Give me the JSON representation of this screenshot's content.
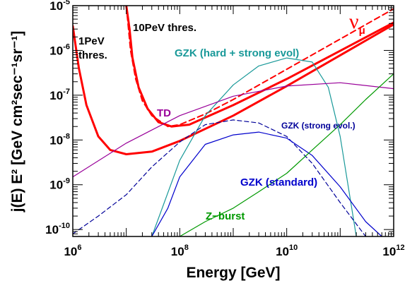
{
  "chart_data": {
    "type": "line",
    "xlabel": "Energy [GeV]",
    "ylabel": "j(E) E² [GeV cm²sec⁻¹sr⁻¹]",
    "x_scale": "log",
    "y_scale": "log",
    "xlim": [
      1000000,
      1000000000000
    ],
    "ylim": [
      7e-11,
      1e-05
    ],
    "x_ticks": [
      {
        "value": 1000000,
        "base": "10",
        "exp": "6"
      },
      {
        "value": 100000000,
        "base": "10",
        "exp": "8"
      },
      {
        "value": 10000000000,
        "base": "10",
        "exp": "10"
      },
      {
        "value": 1000000000000,
        "base": "10",
        "exp": "12"
      }
    ],
    "y_ticks": [
      {
        "value": 1e-10,
        "base": "10",
        "exp": "-10"
      },
      {
        "value": 1e-09,
        "base": "10",
        "exp": "-9"
      },
      {
        "value": 1e-08,
        "base": "10",
        "exp": "-8"
      },
      {
        "value": 1e-07,
        "base": "10",
        "exp": "-7"
      },
      {
        "value": 1e-06,
        "base": "10",
        "exp": "-6"
      },
      {
        "value": 1e-05,
        "base": "10",
        "exp": "-5"
      }
    ],
    "series": [
      {
        "label_key": "thres_1pev",
        "color": "#ff0000",
        "style": "solid",
        "width": 3,
        "x": [
          1000000,
          1300000,
          1800000,
          3000000,
          5000000,
          10000000,
          30000000,
          100000000,
          1000000000,
          10000000000,
          1000000000000
        ],
        "y": [
          3.5e-06,
          4e-07,
          6e-08,
          1.2e-08,
          6e-09,
          4.8e-09,
          5.5e-09,
          9.5e-09,
          3.5e-08,
          1.6e-07,
          3.8e-06
        ]
      },
      {
        "label_key": "thres_10pev",
        "color": "#ff0000",
        "style": "solid",
        "width": 3,
        "x": [
          10000000,
          11500000,
          13000000,
          17000000,
          25000000,
          40000000,
          70000000,
          150000000,
          1000000000,
          10000000000,
          1000000000000
        ],
        "y": [
          1e-05,
          3e-06,
          7e-07,
          1.5e-07,
          5e-08,
          2.5e-08,
          2e-08,
          2.2e-08,
          6e-08,
          2.3e-07,
          4.2e-06
        ]
      },
      {
        "label_key": "nu_mu",
        "color": "#ff0000",
        "style": "dashed",
        "width": 2,
        "x": [
          10000000,
          12000000,
          15000000,
          20000000,
          30000000,
          60000000,
          100000000,
          300000000,
          1000000000,
          10000000000,
          1000000000000
        ],
        "y": [
          1e-05,
          1e-06,
          2.3e-07,
          7.5e-08,
          3.5e-08,
          2e-08,
          2.2e-08,
          3.8e-08,
          8e-08,
          3.8e-07,
          8.5e-06
        ]
      },
      {
        "label_key": "gzk_hard",
        "color": "#199999",
        "style": "solid",
        "width": 1.2,
        "x": [
          30000000,
          100000000,
          300000000,
          1000000000,
          3000000000,
          10000000000,
          30000000000,
          60000000000,
          100000000000,
          200000000000
        ],
        "y": [
          7e-11,
          3.5e-09,
          3.5e-08,
          1.7e-07,
          4.5e-07,
          6.8e-07,
          5.5e-07,
          1.5e-07,
          1.2e-08,
          7e-11
        ]
      },
      {
        "label_key": "td",
        "color": "#990099",
        "style": "solid",
        "width": 1.2,
        "x": [
          1000000,
          10000000,
          100000000,
          1000000000,
          10000000000,
          100000000000,
          1000000000000
        ],
        "y": [
          1.5e-09,
          8.5e-09,
          3.5e-08,
          9.5e-08,
          1.6e-07,
          1.9e-07,
          1.4e-07
        ]
      },
      {
        "label_key": "gzk_strong",
        "color": "#000099",
        "style": "dashed",
        "width": 1.2,
        "x": [
          1000000,
          3000000,
          10000000,
          30000000,
          100000000,
          300000000,
          1000000000,
          3000000000,
          10000000000,
          30000000000,
          100000000000,
          300000000000
        ],
        "y": [
          8e-11,
          2e-10,
          6e-10,
          2.5e-09,
          9e-09,
          2.2e-08,
          2.8e-08,
          2.4e-08,
          1.2e-08,
          3e-09,
          4e-10,
          7e-11
        ]
      },
      {
        "label_key": "gzk_standard",
        "color": "#0000cc",
        "style": "solid",
        "width": 1.2,
        "x": [
          30000000,
          60000000,
          100000000,
          300000000,
          1000000000,
          3000000000,
          10000000000,
          30000000000,
          100000000000,
          300000000000,
          600000000000
        ],
        "y": [
          7e-11,
          3e-10,
          1.5e-09,
          8e-09,
          1.3e-08,
          1.5e-08,
          1.1e-08,
          4.5e-09,
          9e-10,
          1.5e-10,
          7e-11
        ]
      },
      {
        "label_key": "z_burst",
        "color": "#009900",
        "style": "solid",
        "width": 1.2,
        "x": [
          100000000,
          300000000,
          1000000000,
          3000000000,
          10000000000,
          30000000000,
          100000000000,
          300000000000,
          1000000000000
        ],
        "y": [
          7e-11,
          1.5e-10,
          3e-10,
          7e-10,
          1.8e-09,
          6e-09,
          2.2e-08,
          8e-08,
          3e-07
        ]
      }
    ],
    "annotations": {
      "thres_1pev_line1": "1PeV",
      "thres_1pev_line2": "thres.",
      "thres_10pev": "10PeV thres.",
      "nu_mu_base": "ν",
      "nu_mu_sub": "μ",
      "gzk_hard": "GZK (hard + strong evol)",
      "td": "TD",
      "gzk_strong": "GZK (strong evol.)",
      "gzk_standard": "GZK (standard)",
      "z_burst": "Z−burst"
    },
    "colors": {
      "threshold": "#ff0000",
      "gzk_hard": "#199999",
      "td": "#990099",
      "gzk_strong": "#000099",
      "gzk_standard": "#0000cc",
      "z_burst": "#009900"
    },
    "grid": false,
    "legend": "none"
  }
}
